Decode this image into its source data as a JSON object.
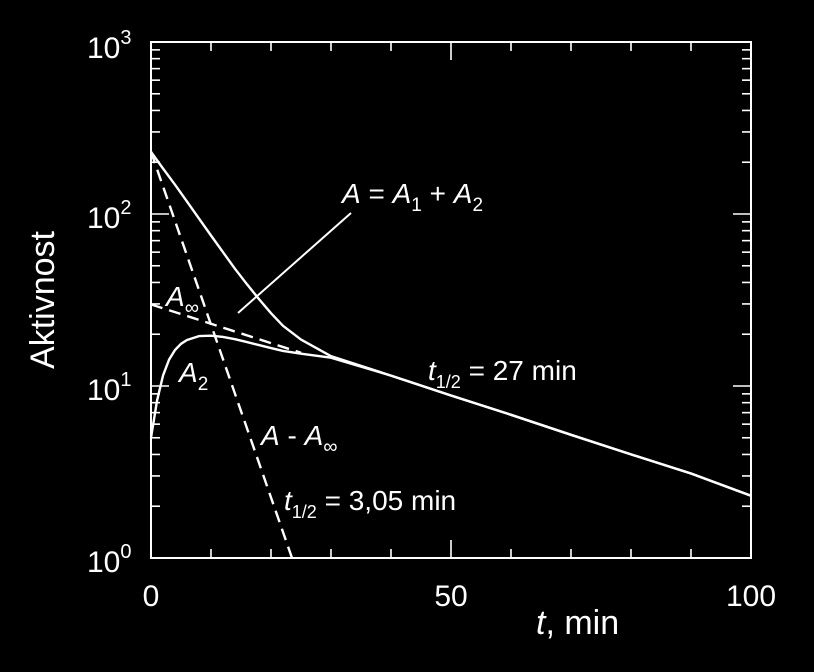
{
  "chart_data": {
    "type": "line",
    "y_scale": "log",
    "xlim": [
      0,
      100
    ],
    "ylim": [
      1,
      1000
    ],
    "x_ticks": [
      0,
      50,
      100
    ],
    "x_tick_labels": [
      "0",
      "50",
      "100"
    ],
    "y_ticks": [
      1,
      10,
      100,
      1000
    ],
    "y_tick_labels": [
      {
        "base": "10",
        "exp": "0"
      },
      {
        "base": "10",
        "exp": "1"
      },
      {
        "base": "10",
        "exp": "2"
      },
      {
        "base": "10",
        "exp": "3"
      }
    ],
    "xlabel": {
      "italic": "t",
      "rest": ", min"
    },
    "ylabel": "Aktivnost",
    "grid": false,
    "series": [
      {
        "key": "A_total",
        "style": "solid",
        "x": [
          0,
          2,
          4,
          6,
          8,
          10,
          12,
          14,
          16,
          18,
          20,
          22,
          25,
          30,
          40,
          50,
          60,
          70,
          80,
          90,
          100
        ],
        "y": [
          230,
          184,
          148,
          118,
          94,
          75,
          60,
          48,
          39,
          32,
          26.5,
          22.4,
          18.6,
          14.9,
          11.5,
          8.8,
          6.8,
          5.2,
          4.0,
          3.1,
          2.3
        ]
      },
      {
        "key": "A2",
        "style": "solid",
        "x": [
          0,
          1,
          2,
          3,
          4,
          5,
          6,
          8,
          10,
          12,
          14,
          16,
          18,
          20,
          22,
          25,
          30,
          40,
          50,
          60,
          70,
          80,
          90,
          100
        ],
        "y": [
          5.0,
          8.2,
          11.5,
          14.2,
          16.2,
          17.6,
          18.5,
          19.5,
          19.6,
          19.3,
          18.7,
          18.0,
          17.3,
          16.6,
          16.0,
          15.4,
          14.6,
          11.5,
          8.8,
          6.8,
          5.2,
          4.0,
          3.1,
          2.3
        ]
      },
      {
        "key": "A_inf",
        "style": "dashed",
        "x": [
          0,
          25
        ],
        "y": [
          29.8,
          15.6
        ]
      },
      {
        "key": "A_minus_Ainf",
        "style": "dashed",
        "x": [
          0,
          23.5
        ],
        "y": [
          230,
          1
        ]
      }
    ],
    "annotations": {
      "total": {
        "parts": [
          "A",
          " = ",
          "A",
          "1",
          " + ",
          "A",
          "2"
        ]
      },
      "a2": {
        "main": "A",
        "sub": "2"
      },
      "ainf": {
        "main": "A",
        "sub": "∞"
      },
      "diff": {
        "main": "A",
        "mid": " - ",
        "main2": "A",
        "sub": "∞"
      },
      "half1": {
        "main": "t",
        "sub": "1/2",
        "rest": " = 27 min"
      },
      "half2": {
        "main": "t",
        "sub": "1/2",
        "rest": " = 3,05 min"
      }
    }
  }
}
